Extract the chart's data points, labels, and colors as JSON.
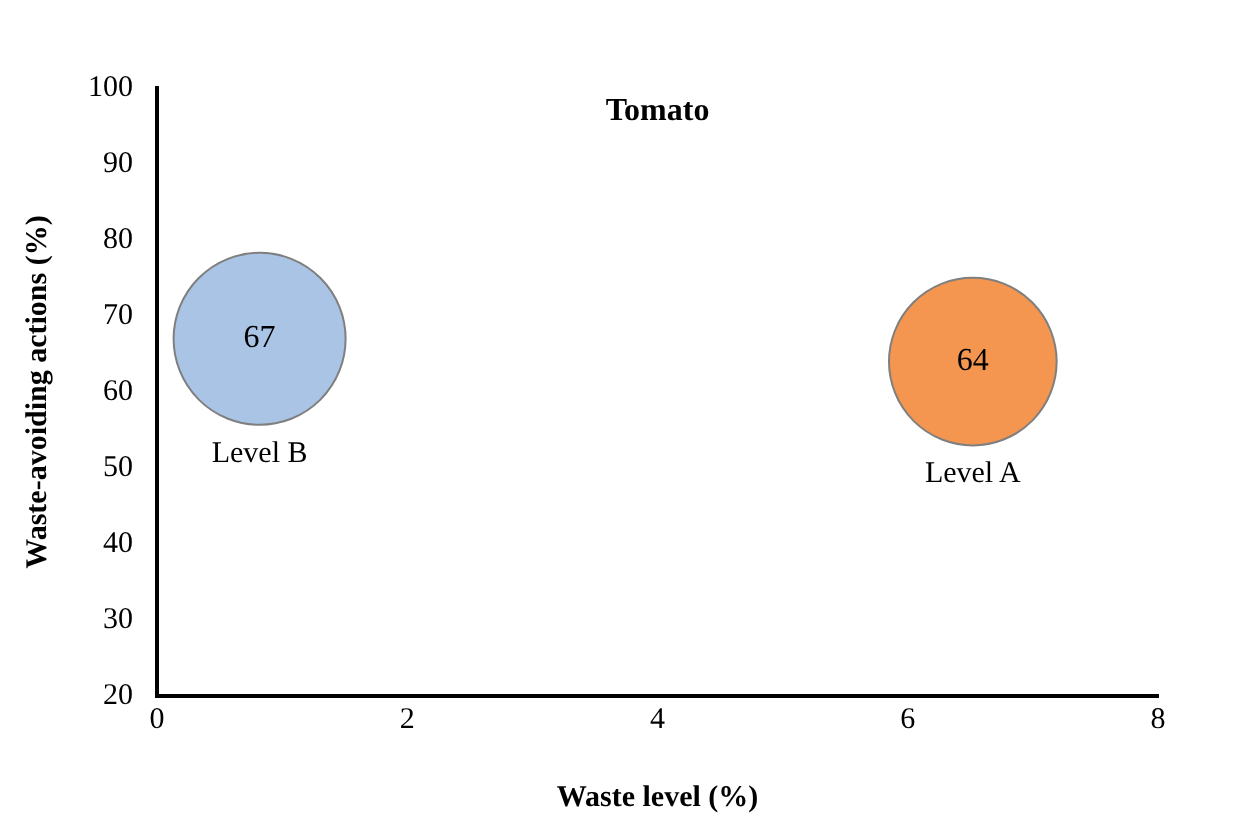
{
  "chart_data": {
    "type": "bubble",
    "title": "Tomato",
    "xlabel": "Waste level (%)",
    "ylabel": "Waste-avoiding actions (%)",
    "xlim": [
      0,
      8
    ],
    "xticks": [
      0,
      2,
      4,
      6,
      8
    ],
    "ylim": [
      20,
      100
    ],
    "yticks": [
      20,
      30,
      40,
      50,
      60,
      70,
      80,
      90,
      100
    ],
    "grid": false,
    "legend": false,
    "data_labels": true,
    "series": [
      {
        "name": "Level B",
        "color": "#a9c4e4",
        "x": [
          0.82
        ],
        "values": [
          67
        ],
        "sizes": [
          1
        ]
      },
      {
        "name": "Level A",
        "color": "#f4964f",
        "x": [
          6.52
        ],
        "values": [
          64
        ],
        "sizes": [
          0.95
        ]
      }
    ]
  }
}
